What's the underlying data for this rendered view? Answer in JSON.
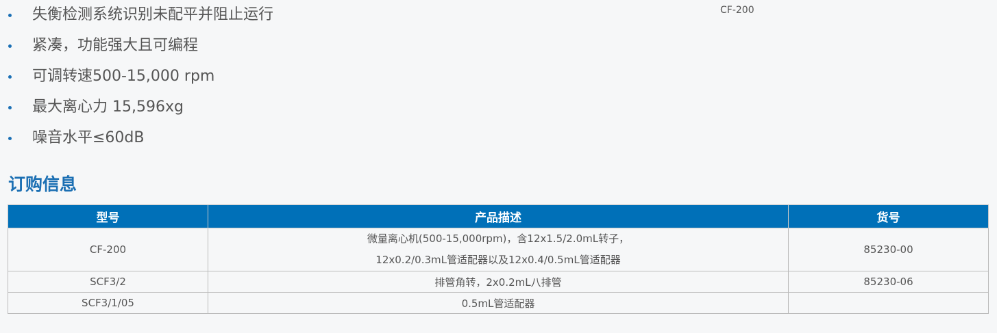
{
  "features": [
    "失衡检测系统识别未配平并阻止运行",
    "紧凑，功能强大且可编程",
    "可调转速500-15,000 rpm",
    "最大离心力 15,596xg",
    "噪音水平≤60dB"
  ],
  "model_tag": "CF-200",
  "ordering": {
    "title": "订购信息",
    "headers": [
      "型号",
      "产品描述",
      "货号"
    ],
    "rows": [
      {
        "model": "CF-200",
        "desc_lines": [
          "微量离心机(500-15,000rpm)，含12x1.5/2.0mL转子，",
          "12x0.2/0.3mL管适配器以及12x0.4/0.5mL管适配器"
        ],
        "sku": "85230-00"
      },
      {
        "model": "SCF3/2",
        "desc_lines": [
          "排管角转，2x0.2mL八排管"
        ],
        "sku": "85230-06"
      },
      {
        "model": "SCF3/1/05",
        "desc_lines": [
          "0.5mL管适配器"
        ],
        "sku": ""
      }
    ]
  },
  "colors": {
    "accent": "#0070b8",
    "heading": "#1b6fb3"
  }
}
